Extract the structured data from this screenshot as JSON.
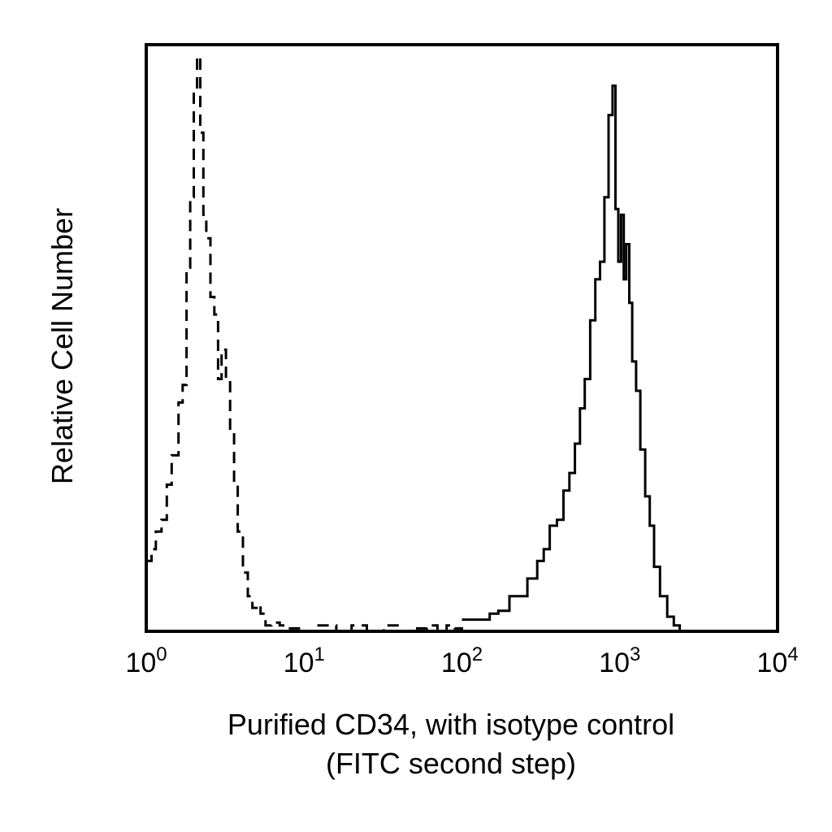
{
  "chart_data": {
    "type": "line",
    "title": "",
    "xlabel_line1": "Purified CD34, with isotype control",
    "xlabel_line2": "(FITC second step)",
    "ylabel": "Relative Cell Number",
    "x_scale": "log",
    "xlim": [
      1,
      10000
    ],
    "ylim": [
      0,
      1
    ],
    "x_ticks": [
      {
        "base": "10",
        "exp": "0",
        "value": 1
      },
      {
        "base": "10",
        "exp": "1",
        "value": 10
      },
      {
        "base": "10",
        "exp": "2",
        "value": 100
      },
      {
        "base": "10",
        "exp": "3",
        "value": 1000
      },
      {
        "base": "10",
        "exp": "4",
        "value": 10000
      }
    ],
    "grid": false,
    "legend": "none",
    "series": [
      {
        "style": "dashed",
        "color": "#000000",
        "x": [
          1.0,
          1.08,
          1.15,
          1.25,
          1.35,
          1.45,
          1.6,
          1.7,
          1.8,
          1.9,
          2.0,
          2.1,
          2.2,
          2.3,
          2.4,
          2.55,
          2.7,
          2.85,
          3.0,
          3.2,
          3.4,
          3.6,
          3.8,
          4.1,
          4.4,
          4.7,
          5.0,
          5.3,
          5.7,
          6.2,
          7.0,
          8.0,
          9.5,
          12,
          16,
          20,
          25,
          32,
          40,
          50,
          60,
          70,
          80,
          90,
          100
        ],
        "y": [
          0.12,
          0.14,
          0.17,
          0.19,
          0.25,
          0.3,
          0.39,
          0.42,
          0.62,
          0.74,
          0.92,
          0.98,
          0.85,
          0.71,
          0.67,
          0.57,
          0.54,
          0.43,
          0.48,
          0.43,
          0.34,
          0.25,
          0.17,
          0.1,
          0.06,
          0.04,
          0.045,
          0.03,
          0.01,
          0.015,
          0.01,
          0.005,
          0.0,
          0.01,
          0.0,
          0.01,
          0.0,
          0.01,
          0.0,
          0.005,
          0.01,
          0.0,
          0.01,
          0.005,
          0.0
        ]
      },
      {
        "style": "solid",
        "color": "#000000",
        "x": [
          100,
          120,
          150,
          170,
          200,
          230,
          260,
          300,
          330,
          360,
          400,
          440,
          480,
          520,
          560,
          600,
          650,
          700,
          750,
          800,
          850,
          900,
          940,
          980,
          1020,
          1060,
          1100,
          1150,
          1200,
          1270,
          1350,
          1450,
          1550,
          1650,
          1800,
          2000,
          2200,
          2400
        ],
        "y": [
          0.02,
          0.02,
          0.03,
          0.035,
          0.06,
          0.06,
          0.09,
          0.12,
          0.14,
          0.18,
          0.19,
          0.24,
          0.27,
          0.32,
          0.38,
          0.43,
          0.53,
          0.6,
          0.63,
          0.74,
          0.88,
          0.93,
          0.72,
          0.63,
          0.71,
          0.6,
          0.66,
          0.56,
          0.46,
          0.41,
          0.31,
          0.23,
          0.18,
          0.11,
          0.06,
          0.025,
          0.01,
          0.0
        ]
      }
    ]
  }
}
